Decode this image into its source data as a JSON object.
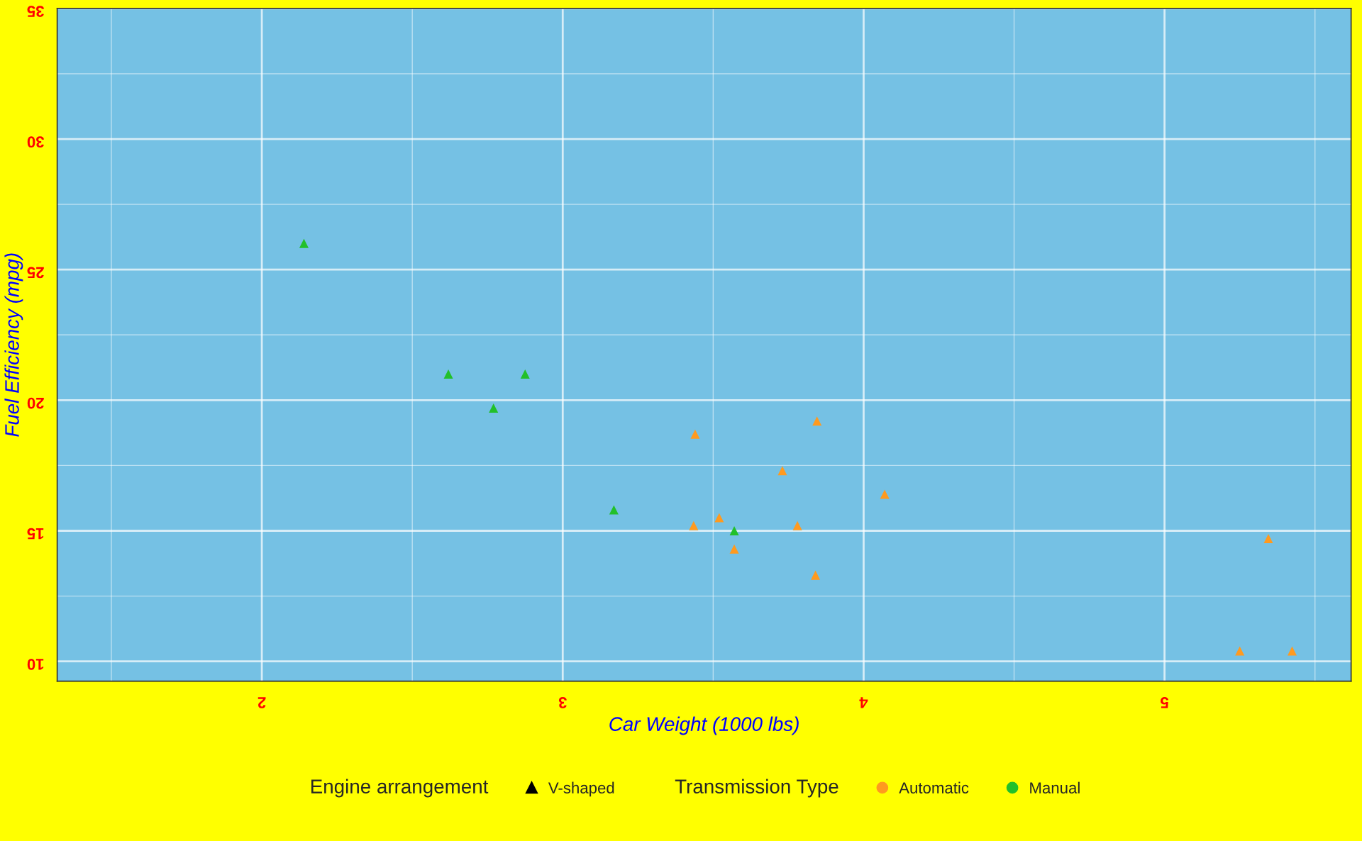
{
  "chart_data": {
    "type": "scatter",
    "xlabel": "Car Weight (1000 lbs)",
    "ylabel": "Fuel Efficiency (mpg)",
    "xlim": [
      1.32,
      5.62
    ],
    "ylim": [
      9.24,
      35
    ],
    "xticks": [
      2,
      3,
      4,
      5
    ],
    "yticks": [
      10,
      15,
      20,
      25,
      30,
      35
    ],
    "grid": true,
    "legend": "bottom",
    "marker": "triangle",
    "legend_title": "Transmission Type",
    "annotations": [
      "Engine arrangement",
      "V-shaped"
    ],
    "series": [
      {
        "name": "Automatic",
        "color": "#ff9a1f",
        "x": [
          3.44,
          3.57,
          4.07,
          3.73,
          3.78,
          5.25,
          5.424,
          5.345,
          3.52,
          3.435,
          3.84,
          3.845
        ],
        "values": [
          18.7,
          14.3,
          16.4,
          17.3,
          15.2,
          10.4,
          10.4,
          14.7,
          15.5,
          15.2,
          13.3,
          19.2
        ]
      },
      {
        "name": "Manual",
        "color": "#22c02a",
        "x": [
          2.62,
          2.875,
          2.14,
          3.17,
          2.77,
          3.57
        ],
        "values": [
          21.0,
          21.0,
          26.0,
          15.8,
          19.7,
          15.0
        ]
      }
    ]
  }
}
